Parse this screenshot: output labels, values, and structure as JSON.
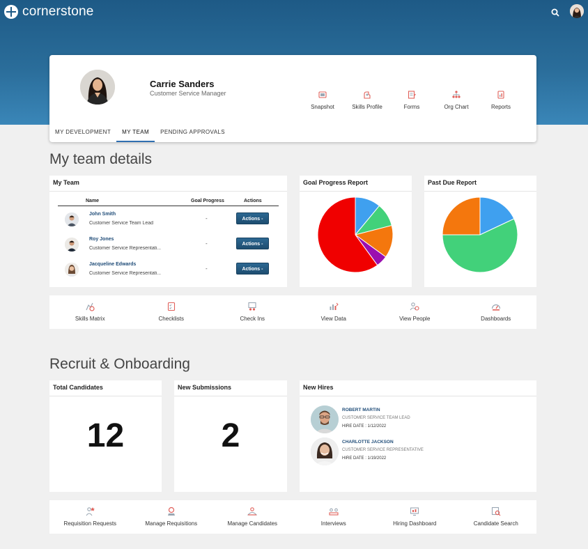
{
  "brand": {
    "name": "cornerstone"
  },
  "profile": {
    "name": "Carrie Sanders",
    "role": "Customer Service Manager",
    "quick_links": [
      {
        "label": "Snapshot",
        "icon": "snapshot-icon"
      },
      {
        "label": "Skills Profile",
        "icon": "skills-profile-icon"
      },
      {
        "label": "Forms",
        "icon": "forms-icon"
      },
      {
        "label": "Org Chart",
        "icon": "org-chart-icon"
      },
      {
        "label": "Reports",
        "icon": "reports-icon"
      }
    ],
    "tabs": [
      {
        "label": "MY DEVELOPMENT",
        "active": false
      },
      {
        "label": "MY TEAM",
        "active": true
      },
      {
        "label": "PENDING APPROVALS",
        "active": false
      }
    ]
  },
  "team_section": {
    "title": "My team details",
    "my_team": {
      "title": "My Team",
      "columns": [
        "Name",
        "Goal Progress",
        "Actions"
      ],
      "rows": [
        {
          "name": "John Smith",
          "role": "Customer Service Team Lead",
          "goal": "-",
          "action": "Actions -"
        },
        {
          "name": "Roy Jones",
          "role": "Customer Service Representati...",
          "goal": "-",
          "action": "Actions -"
        },
        {
          "name": "Jacqueline Edwards",
          "role": "Customer Service Representati...",
          "goal": "-",
          "action": "Actions -"
        }
      ]
    },
    "goal_report": {
      "title": "Goal Progress Report"
    },
    "past_due_report": {
      "title": "Past Due Report"
    },
    "tools": [
      {
        "label": "Skills Matrix",
        "icon": "skills-matrix-icon"
      },
      {
        "label": "Checklists",
        "icon": "checklists-icon"
      },
      {
        "label": "Check Ins",
        "icon": "check-ins-icon"
      },
      {
        "label": "View Data",
        "icon": "view-data-icon"
      },
      {
        "label": "View People",
        "icon": "view-people-icon"
      },
      {
        "label": "Dashboards",
        "icon": "dashboards-icon"
      }
    ]
  },
  "chart_data": [
    {
      "type": "pie",
      "title": "Goal Progress Report",
      "categories": [
        "Blue",
        "Green",
        "Orange",
        "Purple",
        "Red"
      ],
      "values": [
        11,
        10,
        14,
        5,
        60
      ],
      "colors": [
        "#3fa0ef",
        "#42d17a",
        "#f4770d",
        "#9a0fb0",
        "#f00000"
      ]
    },
    {
      "type": "pie",
      "title": "Past Due Report",
      "categories": [
        "Blue",
        "Green",
        "Orange"
      ],
      "values": [
        18,
        57,
        25
      ],
      "colors": [
        "#3fa0ef",
        "#42d17a",
        "#f4770d"
      ]
    }
  ],
  "recruit_section": {
    "title": "Recruit & Onboarding",
    "total_candidates": {
      "title": "Total Candidates",
      "value": "12"
    },
    "new_submissions": {
      "title": "New Submissions",
      "value": "2"
    },
    "new_hires": {
      "title": "New Hires",
      "items": [
        {
          "name": "ROBERT MARTIN",
          "role": "CUSTOMER SERVICE TEAM LEAD",
          "date": "HIRE DATE : 1/12/2022"
        },
        {
          "name": "CHARLOTTE JACKSON",
          "role": "CUSTOMER SERVICE REPRESENTATIVE",
          "date": "HIRE DATE : 1/19/2022"
        }
      ]
    },
    "tools": [
      {
        "label": "Requisition Requests",
        "icon": "requisition-requests-icon"
      },
      {
        "label": "Manage Requisitions",
        "icon": "manage-requisitions-icon"
      },
      {
        "label": "Manage Candidates",
        "icon": "manage-candidates-icon"
      },
      {
        "label": "Interviews",
        "icon": "interviews-icon"
      },
      {
        "label": "Hiring Dashboard",
        "icon": "hiring-dashboard-icon"
      },
      {
        "label": "Candidate Search",
        "icon": "candidate-search-icon"
      }
    ]
  },
  "colors": {
    "header": "#1e5a86",
    "accent": "#2f6fb0",
    "icon": "#e0605a",
    "action_button": "#245b82"
  }
}
